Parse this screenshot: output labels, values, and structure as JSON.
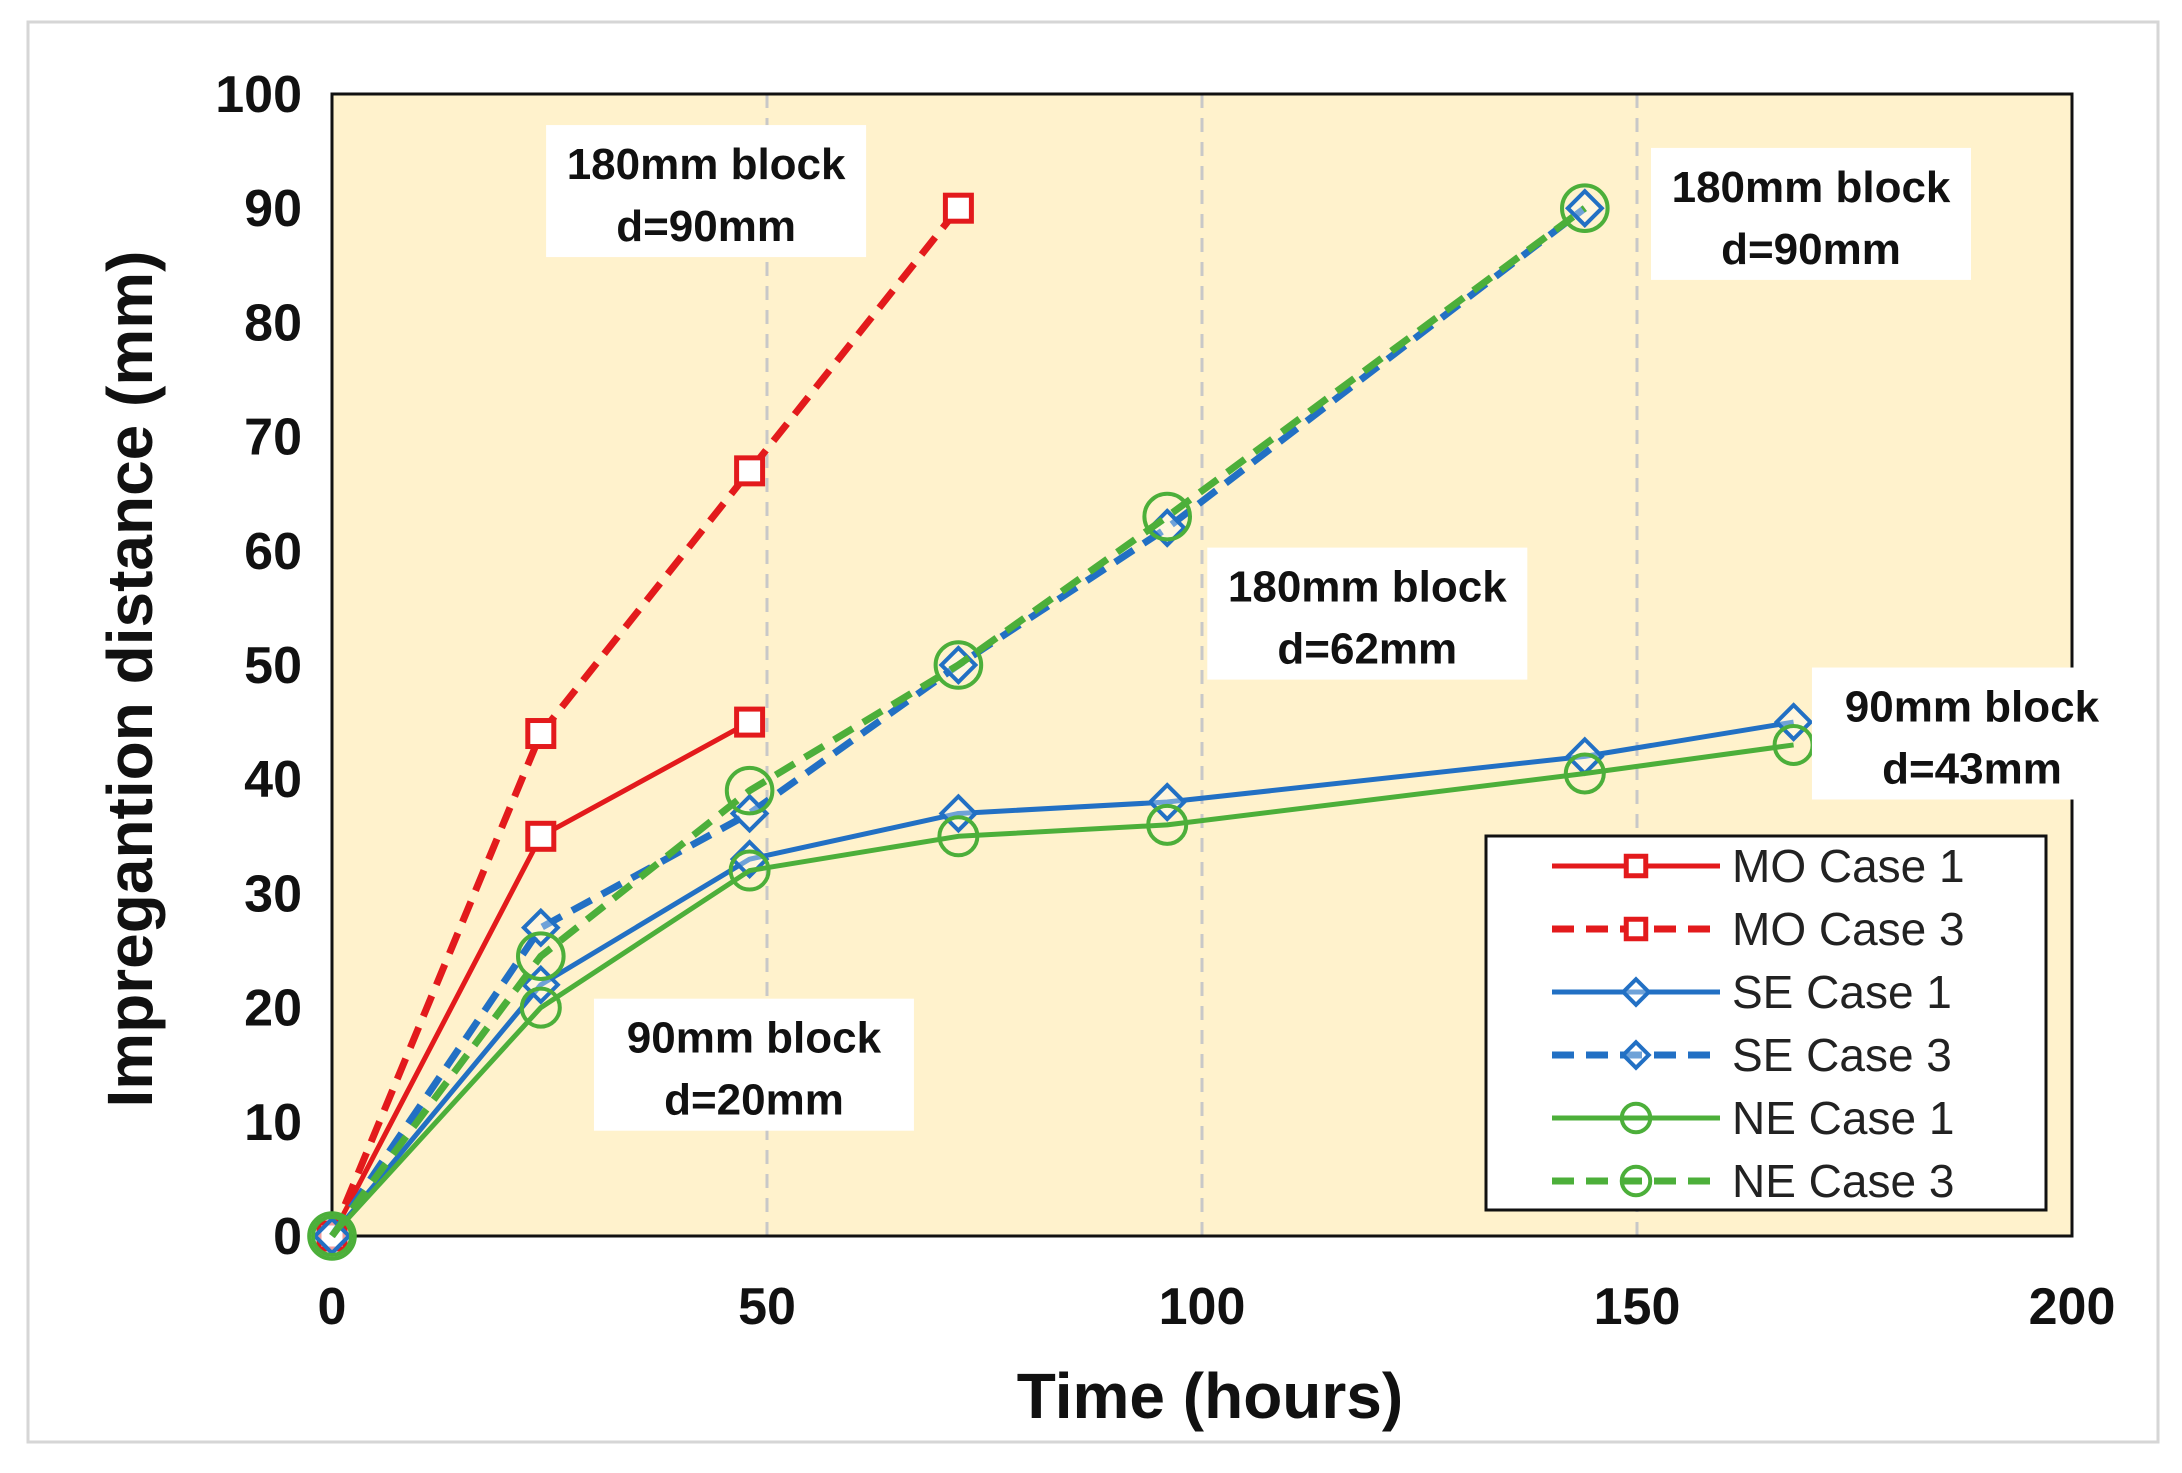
{
  "chart_data": {
    "type": "line",
    "xlabel": "Time (hours)",
    "ylabel": "Impregantion distance (mm)",
    "xlim": [
      0,
      200
    ],
    "ylim": [
      0,
      100
    ],
    "xticks": [
      0,
      50,
      100,
      150,
      200
    ],
    "yticks": [
      0,
      10,
      20,
      30,
      40,
      50,
      60,
      70,
      80,
      90,
      100
    ],
    "grid": "vertical dashed",
    "plot_background": "#FFF2CC",
    "series": [
      {
        "name": "MO Case 1",
        "color": "#E31A1C",
        "dash": "solid",
        "marker": "square-open",
        "x": [
          0,
          24,
          48
        ],
        "y": [
          0,
          35,
          45
        ]
      },
      {
        "name": "MO Case 3",
        "color": "#E31A1C",
        "dash": "dashed",
        "marker": "square-open",
        "x": [
          0,
          24,
          48,
          72
        ],
        "y": [
          0,
          44,
          67,
          90
        ]
      },
      {
        "name": "SE Case 1",
        "color": "#2270C4",
        "dash": "solid",
        "marker": "diamond-open",
        "x": [
          0,
          24,
          48,
          72,
          96,
          144,
          168
        ],
        "y": [
          0,
          22,
          33,
          37,
          38,
          42,
          45
        ]
      },
      {
        "name": "SE Case 3",
        "color": "#2270C4",
        "dash": "dashed",
        "marker": "diamond-open",
        "x": [
          0,
          24,
          48,
          72,
          96,
          144
        ],
        "y": [
          0,
          27,
          37,
          50,
          62,
          90
        ]
      },
      {
        "name": "NE Case 1",
        "color": "#4CAF3A",
        "dash": "solid",
        "marker": "circle-open",
        "x": [
          0,
          24,
          48,
          72,
          96,
          144,
          168
        ],
        "y": [
          0,
          20,
          32,
          35,
          36,
          40.5,
          43
        ]
      },
      {
        "name": "NE Case 3",
        "color": "#4CAF3A",
        "dash": "dashed",
        "marker": "circle-open",
        "x": [
          0,
          24,
          48,
          72,
          96,
          144
        ],
        "y": [
          0,
          24.5,
          39,
          50,
          63,
          90
        ]
      }
    ],
    "annotations": [
      {
        "line1": "180mm block",
        "line2": "d=90mm",
        "x": 43,
        "y": 91.5
      },
      {
        "line1": "180mm block",
        "line2": "d=90mm",
        "x": 170,
        "y": 89.5
      },
      {
        "line1": "180mm block",
        "line2": "d=62mm",
        "x": 119,
        "y": 54.5
      },
      {
        "line1": "90mm block",
        "line2": "d=43mm",
        "x": 188.5,
        "y": 44
      },
      {
        "line1": "90mm block",
        "line2": "d=20mm",
        "x": 48.5,
        "y": 15
      }
    ],
    "legend_position": "bottom-right"
  }
}
